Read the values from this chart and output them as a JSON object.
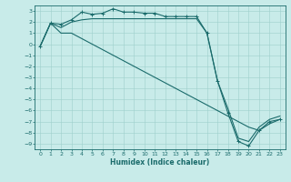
{
  "xlabel": "Humidex (Indice chaleur)",
  "bg_color": "#c8ebe9",
  "line_color": "#1a6b6b",
  "grid_color": "#9ecfcc",
  "xlim": [
    -0.5,
    23.5
  ],
  "ylim": [
    -9.5,
    3.5
  ],
  "xticks": [
    0,
    1,
    2,
    3,
    4,
    5,
    6,
    7,
    8,
    9,
    10,
    11,
    12,
    13,
    14,
    15,
    16,
    17,
    18,
    19,
    20,
    21,
    22,
    23
  ],
  "yticks": [
    3,
    2,
    1,
    0,
    -1,
    -2,
    -3,
    -4,
    -5,
    -6,
    -7,
    -8,
    -9
  ],
  "line1_x": [
    0,
    1,
    2,
    3,
    4,
    5,
    6,
    7,
    8,
    9,
    10,
    11,
    12,
    13,
    14,
    15,
    16,
    17,
    18,
    19,
    20,
    21,
    22,
    23
  ],
  "line1_y": [
    -0.2,
    1.9,
    1.8,
    2.2,
    2.9,
    2.7,
    2.8,
    3.2,
    2.9,
    2.9,
    2.8,
    2.8,
    2.5,
    2.5,
    2.5,
    2.5,
    1.0,
    -3.3,
    -6.2,
    -8.8,
    -9.2,
    -7.8,
    -7.0,
    -6.8
  ],
  "line2_x": [
    0,
    1,
    2,
    3,
    4,
    5,
    6,
    7,
    8,
    9,
    10,
    11,
    12,
    13,
    14,
    15,
    16,
    17,
    18,
    19,
    20,
    21,
    22,
    23
  ],
  "line2_y": [
    -0.2,
    1.9,
    1.5,
    2.0,
    2.2,
    2.3,
    2.3,
    2.3,
    2.3,
    2.3,
    2.3,
    2.3,
    2.3,
    2.3,
    2.3,
    2.3,
    1.0,
    -3.3,
    -5.8,
    -8.5,
    -8.8,
    -7.5,
    -6.8,
    -6.5
  ],
  "line3_x": [
    0,
    1,
    2,
    3,
    4,
    5,
    6,
    7,
    8,
    9,
    10,
    11,
    12,
    13,
    14,
    15,
    16,
    17,
    18,
    19,
    20,
    21,
    22,
    23
  ],
  "line3_y": [
    -0.2,
    1.9,
    1.0,
    1.0,
    0.5,
    0.0,
    -0.5,
    -1.0,
    -1.5,
    -2.0,
    -2.5,
    -3.0,
    -3.5,
    -4.0,
    -4.5,
    -5.0,
    -5.5,
    -6.0,
    -6.5,
    -7.0,
    -7.5,
    -7.8,
    -7.2,
    -6.8
  ],
  "marker": "+",
  "markersize": 3,
  "lw": 0.8
}
